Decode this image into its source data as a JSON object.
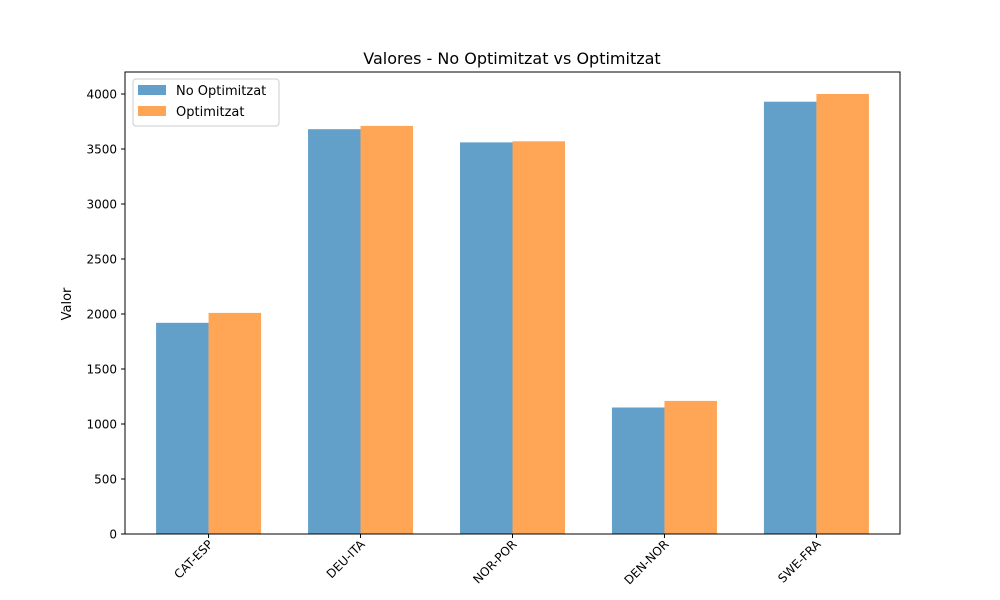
{
  "chart_data": {
    "type": "bar",
    "title": "Valores - No Optimitzat vs Optimitzat",
    "xlabel": "",
    "ylabel": "Valor",
    "categories": [
      "CAT-ESP",
      "DEU-ITA",
      "NOR-POR",
      "DEN-NOR",
      "SWE-FRA"
    ],
    "series": [
      {
        "name": "No Optimitzat",
        "color": "#1f77b4",
        "values": [
          1920,
          3680,
          3560,
          1150,
          3930
        ]
      },
      {
        "name": "Optimitzat",
        "color": "#ff7f0e",
        "values": [
          2010,
          3710,
          3570,
          1210,
          4000
        ]
      }
    ],
    "ylim": [
      0,
      4200
    ],
    "yticks": [
      0,
      500,
      1000,
      1500,
      2000,
      2500,
      3000,
      3500,
      4000
    ],
    "ytick_labels": [
      "0",
      "500",
      "1000",
      "1500",
      "2000",
      "2500",
      "3000",
      "3500",
      "4000"
    ],
    "grid": false,
    "legend_position": "top-left"
  }
}
